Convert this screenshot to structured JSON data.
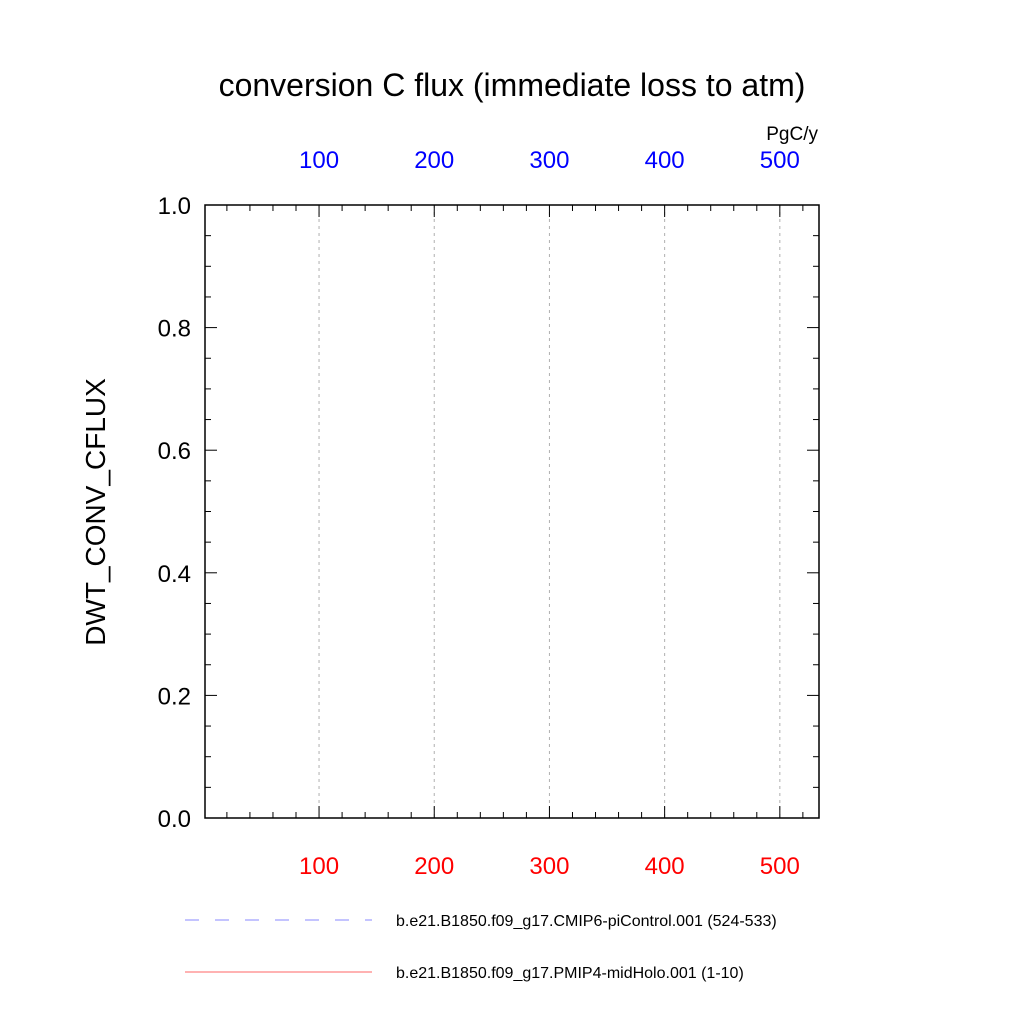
{
  "chart_data": {
    "type": "line",
    "title": "conversion C flux (immediate loss to atm)",
    "ylabel": "DWT_CONV_CFLUX",
    "ylim": [
      0,
      1
    ],
    "y_ticks": [
      "0.0",
      "0.2",
      "0.4",
      "0.6",
      "0.8",
      "1.0"
    ],
    "grid": "dashed vertical lines at major x ticks",
    "x_bottom": {
      "ticks": [
        "100",
        "200",
        "300",
        "400",
        "500"
      ],
      "color": "#ff0000",
      "xlim": [
        1,
        534
      ]
    },
    "x_top": {
      "ticks": [
        "100",
        "200",
        "300",
        "400",
        "500"
      ],
      "color": "#0000ff",
      "unit": "PgC/y",
      "xlim": [
        1,
        534
      ]
    },
    "legend": {
      "placement": "bottom",
      "entries": [
        {
          "label": "b.e21.B1850.f09_g17.CMIP6-piControl.001 (524-533)",
          "color": "#8888ff",
          "dash": "dashed"
        },
        {
          "label": "b.e21.B1850.f09_g17.PMIP4-midHolo.001 (1-10)",
          "color": "#ff6666",
          "dash": "solid"
        }
      ]
    },
    "series": []
  }
}
